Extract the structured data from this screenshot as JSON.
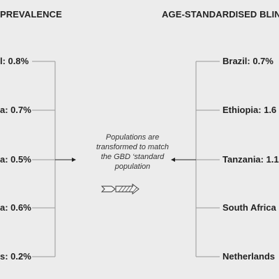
{
  "diagram": {
    "left_header": "PREVALENCE",
    "right_header": "AGE-STANDARDISED BLIN",
    "left_labels": [
      "l: 0.8%",
      "a: 0.7%",
      "a: 0.5%",
      "a: 0.6%",
      "s: 0.2%"
    ],
    "right_labels": [
      "Brazil: 0.7%",
      "Ethiopia: 1.6",
      "Tanzania: 1.1",
      "South Africa",
      "Netherlands"
    ],
    "center_note": [
      "Populations are",
      "transformed to match",
      "the GBD ‘standard",
      "population"
    ],
    "colors": {
      "background": "#ececec",
      "line": "#999999",
      "text": "#222222",
      "arrow": "#222222"
    }
  }
}
